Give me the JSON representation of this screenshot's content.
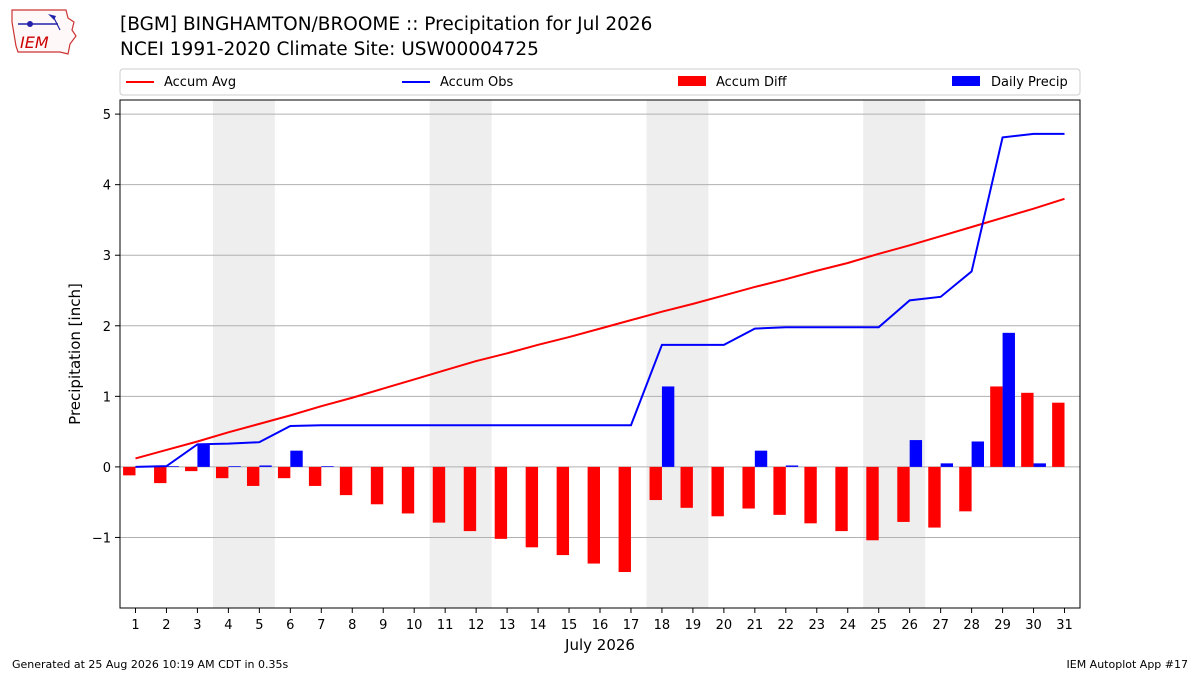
{
  "header": {
    "logo_text": "IEM",
    "title_line1": "[BGM] BINGHAMTON/BROOME :: Precipitation for Jul 2026",
    "title_line2": "NCEI 1991-2020 Climate Site: USW00004725"
  },
  "footer": {
    "generated": "Generated at 25 Aug 2026 10:19 AM CDT in 0.35s",
    "app": "IEM Autoplot App #17"
  },
  "colors": {
    "accum_avg": "#ff0000",
    "accum_obs": "#0000ff",
    "accum_diff": "#ff0000",
    "daily_precip": "#0000ff",
    "weekend_shade": "#eeeeee",
    "grid": "#b0b0b0"
  },
  "chart_data": {
    "type": "bar",
    "title": "[BGM] BINGHAMTON/BROOME :: Precipitation for Jul 2026",
    "subtitle": "NCEI 1991-2020 Climate Site: USW00004725",
    "xlabel": "July 2026",
    "ylabel": "Precipitation [inch]",
    "xlim": [
      0.5,
      31.5
    ],
    "ylim": [
      -2.0,
      5.2
    ],
    "yticks": [
      -1,
      0,
      1,
      2,
      3,
      4,
      5
    ],
    "grid": true,
    "legend_position": "top",
    "categories": [
      1,
      2,
      3,
      4,
      5,
      6,
      7,
      8,
      9,
      10,
      11,
      12,
      13,
      14,
      15,
      16,
      17,
      18,
      19,
      20,
      21,
      22,
      23,
      24,
      25,
      26,
      27,
      28,
      29,
      30,
      31
    ],
    "shaded_weekends": [
      [
        4,
        5
      ],
      [
        11,
        12
      ],
      [
        18,
        19
      ],
      [
        25,
        26
      ]
    ],
    "series": [
      {
        "name": "Accum Avg",
        "type": "line",
        "values": [
          0.12,
          0.24,
          0.36,
          0.49,
          0.61,
          0.73,
          0.86,
          0.98,
          1.11,
          1.24,
          1.37,
          1.5,
          1.61,
          1.73,
          1.84,
          1.96,
          2.08,
          2.2,
          2.31,
          2.43,
          2.55,
          2.66,
          2.78,
          2.89,
          3.02,
          3.14,
          3.27,
          3.4,
          3.53,
          3.66,
          3.8
        ]
      },
      {
        "name": "Accum Obs",
        "type": "line",
        "values": [
          0.0,
          0.01,
          0.32,
          0.33,
          0.35,
          0.58,
          0.59,
          0.59,
          0.59,
          0.59,
          0.59,
          0.59,
          0.59,
          0.59,
          0.59,
          0.59,
          0.59,
          1.73,
          1.73,
          1.73,
          1.96,
          1.98,
          1.98,
          1.98,
          1.98,
          2.36,
          2.41,
          2.77,
          4.67,
          4.72,
          4.72
        ]
      },
      {
        "name": "Accum Diff",
        "type": "bar",
        "values": [
          -0.12,
          -0.23,
          -0.06,
          -0.16,
          -0.27,
          -0.16,
          -0.27,
          -0.4,
          -0.53,
          -0.66,
          -0.79,
          -0.91,
          -1.02,
          -1.14,
          -1.25,
          -1.37,
          -1.49,
          -0.47,
          -0.58,
          -0.7,
          -0.59,
          -0.68,
          -0.8,
          -0.91,
          -1.04,
          -0.78,
          -0.86,
          -0.63,
          1.14,
          1.05,
          0.91
        ]
      },
      {
        "name": "Daily Precip",
        "type": "bar",
        "values": [
          0.0,
          0.01,
          0.31,
          0.01,
          0.02,
          0.23,
          0.01,
          0.0,
          0.0,
          0.0,
          0.0,
          0.0,
          0.0,
          0.0,
          0.0,
          0.0,
          0.0,
          1.14,
          0.0,
          0.0,
          0.23,
          0.02,
          0.0,
          0.0,
          0.0,
          0.38,
          0.05,
          0.36,
          1.9,
          0.05,
          0.0
        ]
      }
    ]
  }
}
